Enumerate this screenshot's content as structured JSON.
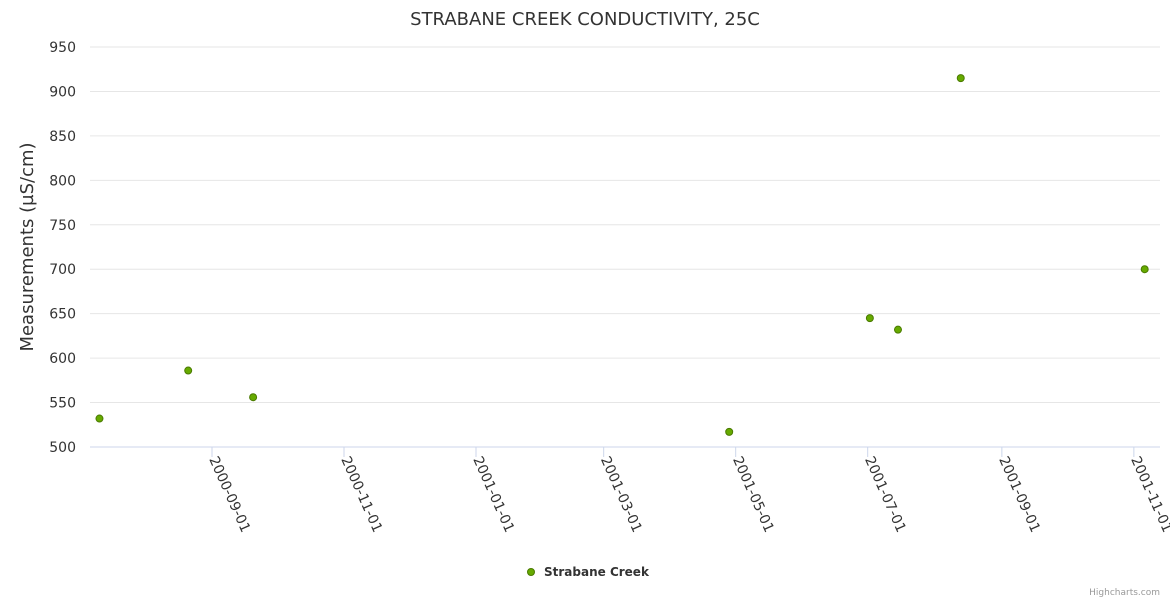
{
  "chart_data": {
    "type": "scatter",
    "title": "STRABANE CREEK CONDUCTIVITY, 25C",
    "xlabel": "",
    "ylabel": "Measurements (µS/cm)",
    "ylim": [
      500,
      950
    ],
    "yticks": [
      500,
      550,
      600,
      650,
      700,
      750,
      800,
      850,
      900,
      950
    ],
    "xticks": [
      "2000-09-01",
      "2000-11-01",
      "2001-01-01",
      "2001-03-01",
      "2001-05-01",
      "2001-07-01",
      "2001-09-01",
      "2001-11-01"
    ],
    "xlim": [
      "2000-07-07",
      "2001-11-11"
    ],
    "grid": true,
    "legend_position": "bottom-center",
    "series": [
      {
        "name": "Strabane Creek",
        "color": "#66aa00",
        "points": [
          {
            "x": "2000-07-11",
            "y": 532
          },
          {
            "x": "2000-08-21",
            "y": 586
          },
          {
            "x": "2000-09-20",
            "y": 556
          },
          {
            "x": "2001-04-28",
            "y": 517
          },
          {
            "x": "2001-07-02",
            "y": 645
          },
          {
            "x": "2001-07-15",
            "y": 632
          },
          {
            "x": "2001-08-13",
            "y": 915
          },
          {
            "x": "2001-11-06",
            "y": 700
          }
        ]
      }
    ]
  },
  "credits": "Highcharts.com"
}
